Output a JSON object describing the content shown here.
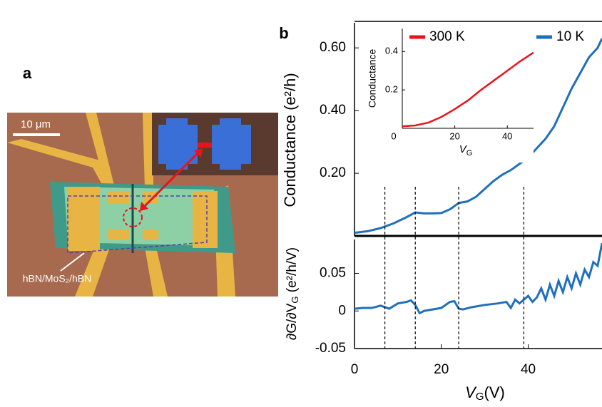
{
  "panel_labels": [
    "a",
    "b"
  ],
  "micrograph": {
    "scale_bar": "10 μm",
    "sample_label": "hBN/MoS₂/hBN"
  },
  "chart_data": [
    {
      "type": "line",
      "y_label": "Conductance (e²/h)",
      "xlim": [
        0,
        57
      ],
      "ylim": [
        0,
        0.68
      ],
      "yticks": [
        {
          "value": 0.2,
          "label": "0.20"
        },
        {
          "value": 0.4,
          "label": "0.40"
        },
        {
          "value": 0.6,
          "label": "0.60"
        }
      ],
      "legend": "top-right",
      "dashed_x": [
        7,
        14,
        24,
        39
      ],
      "series": [
        {
          "name": "10 K",
          "color": "#1f6fc0",
          "x": [
            0,
            3,
            6,
            9,
            12,
            14,
            16,
            18,
            20,
            22,
            24,
            26,
            28,
            30,
            32,
            34,
            36,
            38,
            40,
            42,
            44,
            46,
            48,
            50,
            52,
            54,
            56,
            57
          ],
          "values": [
            0.01,
            0.015,
            0.025,
            0.04,
            0.06,
            0.075,
            0.072,
            0.072,
            0.073,
            0.085,
            0.105,
            0.11,
            0.125,
            0.15,
            0.175,
            0.195,
            0.21,
            0.23,
            0.25,
            0.28,
            0.31,
            0.35,
            0.41,
            0.47,
            0.52,
            0.57,
            0.6,
            0.63
          ]
        }
      ]
    },
    {
      "type": "line",
      "y_label_parts": [
        "∂G/∂V",
        "G",
        " (e²/h/V)"
      ],
      "x_label_parts": [
        "V",
        "G",
        "(V)"
      ],
      "xlim": [
        0,
        57
      ],
      "ylim": [
        -0.05,
        0.095
      ],
      "xticks": [
        0,
        20,
        40
      ],
      "yticks": [
        -0.05,
        0,
        0.05
      ],
      "series": [
        {
          "name": "10 K",
          "color": "#1f6fc0",
          "x": [
            0,
            2,
            4,
            6,
            8,
            10,
            12,
            13,
            14,
            15,
            16,
            18,
            20,
            22,
            23,
            24,
            25,
            27,
            30,
            33,
            35,
            36,
            37,
            38,
            40,
            41,
            42,
            43,
            44,
            45,
            46,
            47,
            48,
            49,
            50,
            51,
            52,
            53,
            54,
            55,
            56,
            57
          ],
          "values": [
            0.003,
            0.004,
            0.004,
            0.007,
            0.003,
            0.01,
            0.012,
            0.014,
            0.008,
            -0.003,
            0,
            0.002,
            0.004,
            0.012,
            0.013,
            0.003,
            0.002,
            0.005,
            0.008,
            0.01,
            0.012,
            0.004,
            0.015,
            0.01,
            0.02,
            0.012,
            0.018,
            0.03,
            0.015,
            0.035,
            0.02,
            0.04,
            0.025,
            0.045,
            0.03,
            0.05,
            0.035,
            0.055,
            0.045,
            0.065,
            0.06,
            0.09
          ]
        }
      ]
    },
    {
      "type": "line",
      "y_label": "Conductance",
      "x_label_parts": [
        "V",
        "G"
      ],
      "xlim": [
        0,
        50
      ],
      "ylim": [
        0,
        0.52
      ],
      "xticks": [
        0,
        20,
        40
      ],
      "yticks": [
        0.2,
        0.4
      ],
      "legend": "top-left",
      "series": [
        {
          "name": "300 K",
          "color": "#e8141b",
          "x": [
            0,
            5,
            10,
            15,
            20,
            25,
            30,
            35,
            40,
            45,
            50
          ],
          "values": [
            0.01,
            0.015,
            0.03,
            0.06,
            0.1,
            0.145,
            0.2,
            0.25,
            0.3,
            0.35,
            0.395
          ]
        }
      ]
    }
  ]
}
